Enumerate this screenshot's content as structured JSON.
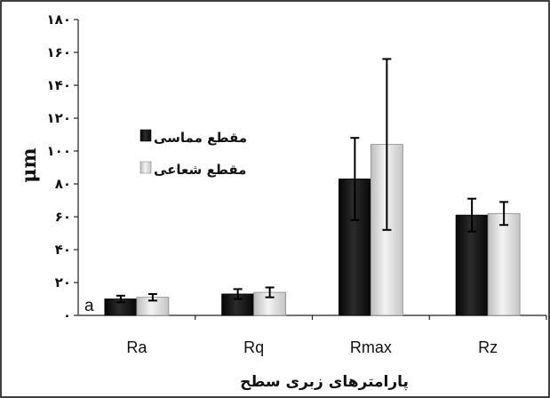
{
  "chart_data": {
    "type": "bar",
    "categories": [
      "Ra",
      "Rq",
      "Rmax",
      "Rz"
    ],
    "series": [
      {
        "name": "مقطع مماسی",
        "color": "#1a1a1a",
        "values": [
          10,
          13,
          83,
          61
        ],
        "errors": [
          2,
          3,
          25,
          10
        ]
      },
      {
        "name": "مقطع شعاعی",
        "color": "#cfcfcf",
        "values": [
          11,
          14,
          104,
          62
        ],
        "errors": [
          2,
          3,
          52,
          7
        ]
      }
    ],
    "xlabel": "پارامترهای زبری سطح",
    "ylabel": "μm",
    "ylim": [
      0,
      180
    ],
    "yticks": [
      0,
      20,
      40,
      60,
      80,
      100,
      120,
      140,
      160,
      180
    ],
    "ytick_labels": [
      "٠",
      "٢٠",
      "۴٠",
      "۶٠",
      "٨٠",
      "١٠٠",
      "١٢٠",
      "١۴٠",
      "١۶٠",
      "١٨٠"
    ],
    "legend_position": "upper-left",
    "panel_label": "a",
    "grid": false
  }
}
